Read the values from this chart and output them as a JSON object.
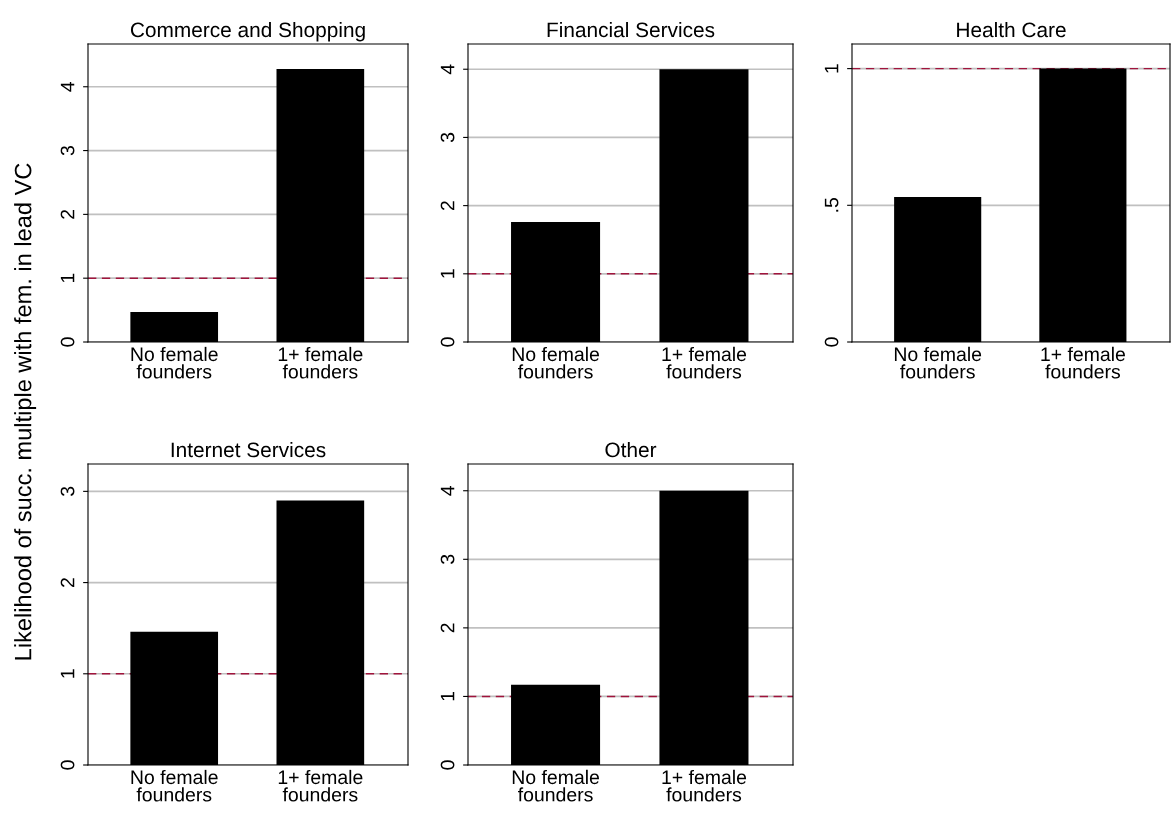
{
  "chart_data": [
    {
      "type": "bar",
      "title": "Commerce and Shopping",
      "ylabel": "Likelihood of succ. multiple with fem. in lead VC",
      "categories": [
        "No female\nfounders",
        "1+ female\nfounders"
      ],
      "values": [
        0.47,
        4.28
      ],
      "color": "#000000",
      "ylim": [
        0,
        4.67
      ],
      "yticks": [
        0,
        1,
        2,
        3,
        4
      ],
      "grid": "y",
      "ref_lines": [
        {
          "axis": "y",
          "value": 1,
          "color": "#a0143c",
          "line_style": "dashed"
        }
      ]
    },
    {
      "type": "bar",
      "title": "Financial Services",
      "categories": [
        "No female\nfounders",
        "1+ female\nfounders"
      ],
      "values": [
        1.76,
        4.0
      ],
      "color": "#000000",
      "ylim": [
        0,
        4.37
      ],
      "yticks": [
        0,
        1,
        2,
        3,
        4
      ],
      "grid": "y",
      "ref_lines": [
        {
          "axis": "y",
          "value": 1,
          "color": "#a0143c",
          "line_style": "dashed"
        }
      ]
    },
    {
      "type": "bar",
      "title": "Health Care",
      "categories": [
        "No female\nfounders",
        "1+ female\nfounders"
      ],
      "values": [
        0.53,
        1.0
      ],
      "color": "#000000",
      "ylim": [
        0,
        1.09
      ],
      "yticks": [
        0,
        {
          "value": 0.5,
          "label": ".5"
        },
        1
      ],
      "grid": "y",
      "ref_lines": [
        {
          "axis": "y",
          "value": 1,
          "color": "#a0143c",
          "line_style": "dashed"
        }
      ]
    },
    {
      "type": "bar",
      "title": "Internet Services",
      "categories": [
        "No female\nfounders",
        "1+ female\nfounders"
      ],
      "values": [
        1.46,
        2.9
      ],
      "color": "#000000",
      "ylim": [
        0,
        3.3
      ],
      "yticks": [
        0,
        1,
        2,
        3
      ],
      "grid": "y",
      "ref_lines": [
        {
          "axis": "y",
          "value": 1,
          "color": "#a0143c",
          "line_style": "dashed"
        }
      ]
    },
    {
      "type": "bar",
      "title": "Other",
      "categories": [
        "No female\nfounders",
        "1+ female\nfounders"
      ],
      "values": [
        1.17,
        4.0
      ],
      "color": "#000000",
      "ylim": [
        0,
        4.39
      ],
      "yticks": [
        0,
        1,
        2,
        3,
        4
      ],
      "grid": "y",
      "ref_lines": [
        {
          "axis": "y",
          "value": 1,
          "color": "#a0143c",
          "line_style": "dashed"
        }
      ]
    }
  ]
}
